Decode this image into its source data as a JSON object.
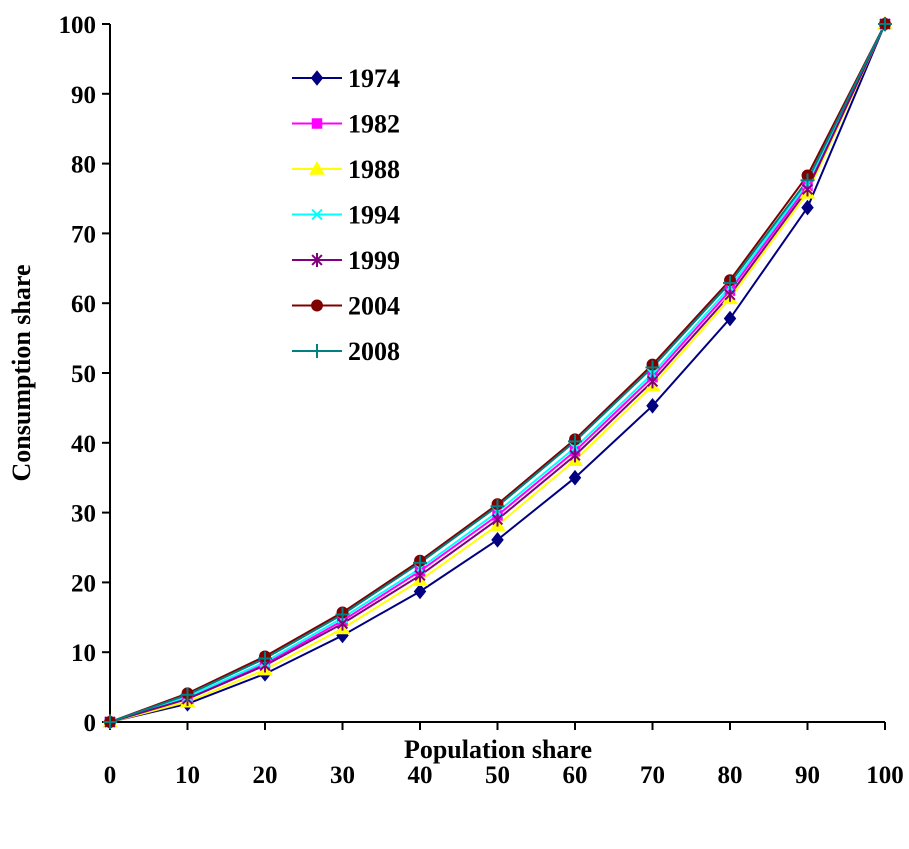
{
  "chart_data": {
    "type": "line",
    "xlabel": "Population share",
    "ylabel": "Consumption share",
    "x": [
      0,
      10,
      20,
      30,
      40,
      50,
      60,
      70,
      80,
      90,
      100
    ],
    "xlim": [
      0,
      100
    ],
    "ylim": [
      0,
      100
    ],
    "xticks": [
      "0",
      "10",
      "20",
      "30",
      "40",
      "50",
      "60",
      "70",
      "80",
      "90",
      "100"
    ],
    "yticks": [
      "0",
      "10",
      "20",
      "30",
      "40",
      "50",
      "60",
      "70",
      "80",
      "90",
      "100"
    ],
    "grid": false,
    "legend_position": "top-left",
    "series": [
      {
        "name": "1974",
        "color": "#000080",
        "marker": "diamond",
        "values": [
          0,
          2.6,
          6.9,
          12.4,
          18.7,
          26.1,
          35.0,
          45.3,
          57.8,
          73.7,
          100
        ]
      },
      {
        "name": "1982",
        "color": "#FF00FF",
        "marker": "square",
        "values": [
          0,
          3.5,
          8.3,
          14.5,
          21.6,
          29.6,
          38.8,
          49.4,
          61.8,
          76.8,
          100
        ]
      },
      {
        "name": "1988",
        "color": "#FFFF00",
        "marker": "triangle",
        "values": [
          0,
          2.9,
          7.5,
          13.4,
          20.3,
          28.2,
          37.5,
          48.2,
          60.7,
          75.8,
          100
        ]
      },
      {
        "name": "1994",
        "color": "#00FFFF",
        "marker": "x",
        "values": [
          0,
          3.6,
          8.6,
          14.9,
          22.0,
          30.1,
          39.3,
          49.9,
          62.3,
          77.2,
          100
        ]
      },
      {
        "name": "1999",
        "color": "#800080",
        "marker": "asterisk",
        "values": [
          0,
          3.3,
          8.1,
          14.1,
          21.0,
          29.0,
          38.2,
          48.8,
          61.2,
          76.3,
          100
        ]
      },
      {
        "name": "2004",
        "color": "#800000",
        "marker": "circle",
        "values": [
          0,
          4.1,
          9.4,
          15.7,
          23.1,
          31.2,
          40.5,
          51.2,
          63.3,
          78.3,
          100
        ]
      },
      {
        "name": "2008",
        "color": "#008080",
        "marker": "plus",
        "values": [
          0,
          3.9,
          9.1,
          15.4,
          22.8,
          30.9,
          40.2,
          50.8,
          62.9,
          77.6,
          100
        ]
      }
    ]
  }
}
